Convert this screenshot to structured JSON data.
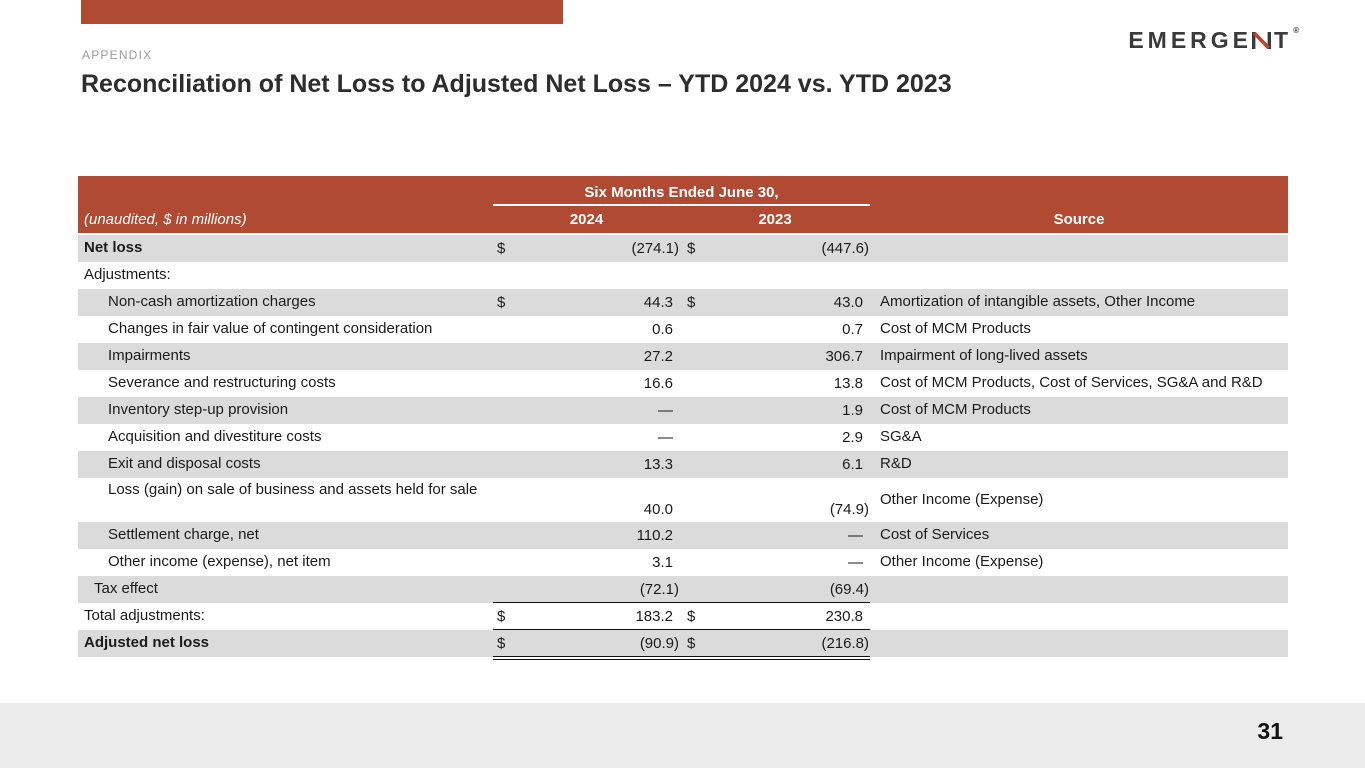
{
  "slide": {
    "eyebrow": "APPENDIX",
    "title": "Reconciliation of Net Loss to Adjusted Net Loss – YTD 2024 vs. YTD 2023",
    "logo": {
      "text": "EMERGENT",
      "letters_before_n": "EMERGE",
      "letters_after_n": "T",
      "registered": "®"
    },
    "page_number": "31",
    "colors": {
      "accent_red": "#B04A33",
      "row_gray": "#DBDBDB",
      "footer_gray": "#ECECEC",
      "logo_dark": "#3A3A3A",
      "logo_red": "#C0432B"
    }
  },
  "table": {
    "span_header": "Six Months Ended June 30,",
    "unit_note": "(unaudited, $ in millions)",
    "col_2024": "2024",
    "col_2023": "2023",
    "col_source": "Source",
    "rows": [
      {
        "label": "Net loss",
        "bold": true,
        "shaded": true,
        "indent": 0,
        "d24": "$",
        "v24": "(274.1)",
        "d23": "$",
        "v23": "(447.6)",
        "source": "",
        "rule": "",
        "tall": false
      },
      {
        "label": "Adjustments:",
        "bold": false,
        "shaded": false,
        "indent": 0,
        "d24": "",
        "v24": "",
        "d23": "",
        "v23": "",
        "source": "",
        "rule": "",
        "tall": false
      },
      {
        "label": "Non-cash amortization charges",
        "bold": false,
        "shaded": true,
        "indent": 2,
        "d24": "$",
        "v24": "44.3",
        "d23": "$",
        "v23": "43.0",
        "source": "Amortization of intangible assets, Other Income",
        "rule": "",
        "tall": false
      },
      {
        "label": "Changes in fair value of contingent consideration",
        "bold": false,
        "shaded": false,
        "indent": 2,
        "d24": "",
        "v24": "0.6",
        "d23": "",
        "v23": "0.7",
        "source": "Cost of MCM Products",
        "rule": "",
        "tall": false
      },
      {
        "label": "Impairments",
        "bold": false,
        "shaded": true,
        "indent": 2,
        "d24": "",
        "v24": "27.2",
        "d23": "",
        "v23": "306.7",
        "source": "Impairment of long-lived assets",
        "rule": "",
        "tall": false
      },
      {
        "label": "Severance and restructuring costs",
        "bold": false,
        "shaded": false,
        "indent": 2,
        "d24": "",
        "v24": "16.6",
        "d23": "",
        "v23": "13.8",
        "source": "Cost of MCM Products, Cost of Services, SG&A and R&D",
        "rule": "",
        "tall": false
      },
      {
        "label": "Inventory step-up provision",
        "bold": false,
        "shaded": true,
        "indent": 2,
        "d24": "",
        "v24": "—",
        "d23": "",
        "v23": "1.9",
        "source": "Cost of MCM Products",
        "rule": "",
        "tall": false
      },
      {
        "label": "Acquisition and divestiture costs",
        "bold": false,
        "shaded": false,
        "indent": 2,
        "d24": "",
        "v24": "—",
        "d23": "",
        "v23": "2.9",
        "source": "SG&A",
        "rule": "",
        "tall": false
      },
      {
        "label": "Exit and disposal costs",
        "bold": false,
        "shaded": true,
        "indent": 2,
        "d24": "",
        "v24": "13.3",
        "d23": "",
        "v23": "6.1",
        "source": "R&D",
        "rule": "",
        "tall": false
      },
      {
        "label": "Loss (gain) on sale of business and assets held for sale",
        "bold": false,
        "shaded": false,
        "indent": 2,
        "d24": "",
        "v24": "40.0",
        "d23": "",
        "v23": "(74.9)",
        "source": "Other Income (Expense)",
        "rule": "",
        "tall": true
      },
      {
        "label": "Settlement charge, net",
        "bold": false,
        "shaded": true,
        "indent": 2,
        "d24": "",
        "v24": "110.2",
        "d23": "",
        "v23": "—",
        "source": "Cost of Services",
        "rule": "",
        "tall": false
      },
      {
        "label": "Other income (expense), net item",
        "bold": false,
        "shaded": false,
        "indent": 2,
        "d24": "",
        "v24": "3.1",
        "d23": "",
        "v23": "—",
        "source": "Other Income (Expense)",
        "rule": "",
        "tall": false
      },
      {
        "label": "Tax effect",
        "bold": false,
        "shaded": true,
        "indent": 1,
        "d24": "",
        "v24": "(72.1)",
        "d23": "",
        "v23": "(69.4)",
        "source": "",
        "rule": "single",
        "tall": false
      },
      {
        "label": "Total adjustments:",
        "bold": false,
        "shaded": false,
        "indent": 0,
        "d24": "$",
        "v24": "183.2",
        "d23": "$",
        "v23": "230.8",
        "source": "",
        "rule": "single",
        "tall": false
      },
      {
        "label": "Adjusted net loss",
        "bold": true,
        "shaded": true,
        "indent": 0,
        "d24": "$",
        "v24": "(90.9)",
        "d23": "$",
        "v23": "(216.8)",
        "source": "",
        "rule": "double",
        "tall": false
      }
    ]
  }
}
